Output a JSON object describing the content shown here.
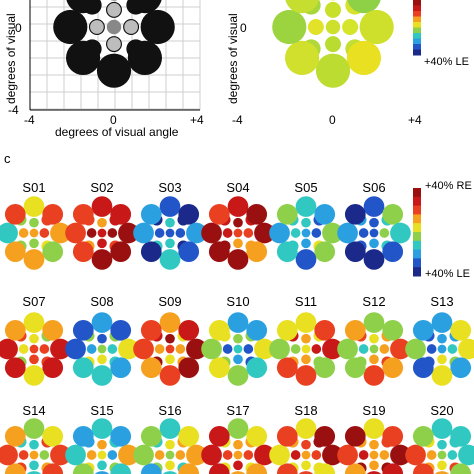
{
  "panel_top_left": {
    "ylabel": "degrees of visual",
    "y_tick_zero": "0",
    "y_tick_min": "-4",
    "xlabel": "degrees of visual angle",
    "x_tick_min": "-4",
    "x_tick_zero": "0",
    "x_tick_max": "+4",
    "dot_color": "#111111",
    "center_color": "#888888"
  },
  "panel_top_right": {
    "ylabel": "degrees of visual",
    "y_tick_zero": "0",
    "x_tick_min": "-4",
    "x_tick_zero": "0",
    "x_tick_max": "+4",
    "colorbar_bottom_label": "+40% LE"
  },
  "panel_c": {
    "label": "c",
    "colorbar_top_label": "+40% RE",
    "colorbar_bottom_label": "+40% LE",
    "subjects": [
      "S01",
      "S02",
      "S03",
      "S04",
      "S05",
      "S06",
      "S07",
      "S08",
      "S09",
      "S10",
      "S11",
      "S12",
      "S13",
      "S14",
      "S15",
      "S16",
      "S17",
      "S18",
      "S19",
      "S20"
    ]
  },
  "colors": {
    "colormap": [
      "#1b2a8a",
      "#2255c8",
      "#2aa0e0",
      "#30c8c0",
      "#8fd04a",
      "#e8e020",
      "#f6a020",
      "#e84020",
      "#c81818",
      "#9a1010"
    ]
  }
}
